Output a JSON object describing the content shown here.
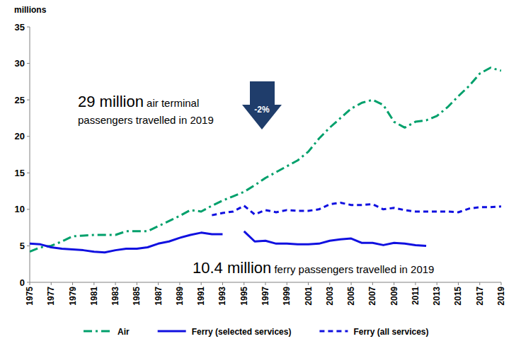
{
  "chart_data": {
    "type": "line",
    "y_label": "millions",
    "x": [
      1975,
      1976,
      1977,
      1978,
      1979,
      1980,
      1981,
      1982,
      1983,
      1984,
      1985,
      1986,
      1987,
      1988,
      1989,
      1990,
      1991,
      1992,
      1993,
      1994,
      1995,
      1996,
      1997,
      1998,
      1999,
      2000,
      2001,
      2002,
      2003,
      2004,
      2005,
      2006,
      2007,
      2008,
      2009,
      2010,
      2011,
      2012,
      2013,
      2014,
      2015,
      2016,
      2017,
      2018,
      2019
    ],
    "xlim": [
      1975,
      2019
    ],
    "xticks": [
      1975,
      1977,
      1979,
      1981,
      1983,
      1985,
      1987,
      1989,
      1991,
      1993,
      1995,
      1997,
      1999,
      2001,
      2003,
      2005,
      2007,
      2009,
      2011,
      2013,
      2015,
      2017,
      2019
    ],
    "ylim": [
      0,
      35
    ],
    "yticks": [
      0,
      5,
      10,
      15,
      20,
      25,
      30,
      35
    ],
    "grid": false,
    "legend": "bottom",
    "series": [
      {
        "name": "Air",
        "color": "#00a06b",
        "line_style": "dashdot",
        "values": [
          4.2,
          4.8,
          5.0,
          5.6,
          6.3,
          6.4,
          6.5,
          6.5,
          6.5,
          7.0,
          7.0,
          7.0,
          7.7,
          8.4,
          9.1,
          9.9,
          9.7,
          10.5,
          11.2,
          11.8,
          12.4,
          13.3,
          14.3,
          15.1,
          15.9,
          16.7,
          17.9,
          19.7,
          21.2,
          22.5,
          23.8,
          24.6,
          25.0,
          24.3,
          22.0,
          21.2,
          22.0,
          22.2,
          22.8,
          24.0,
          25.5,
          26.9,
          28.6,
          29.4,
          29.0
        ]
      },
      {
        "name": "Ferry (selected services)",
        "color": "#1010e0",
        "line_style": "solid",
        "values": [
          5.3,
          5.2,
          4.8,
          4.6,
          4.5,
          4.4,
          4.2,
          4.1,
          4.4,
          4.6,
          4.6,
          4.8,
          5.3,
          5.6,
          6.1,
          6.5,
          6.8,
          6.6,
          6.6,
          null,
          7.0,
          5.6,
          5.7,
          5.3,
          5.3,
          5.2,
          5.2,
          5.3,
          5.7,
          5.9,
          6.0,
          5.4,
          5.4,
          5.1,
          5.4,
          5.3,
          5.1,
          5.0,
          null,
          null,
          null,
          null,
          null,
          null,
          null
        ]
      },
      {
        "name": "Ferry (all services)",
        "color": "#1010e0",
        "line_style": "dashed",
        "values": [
          null,
          null,
          null,
          null,
          null,
          null,
          null,
          null,
          null,
          null,
          null,
          null,
          null,
          null,
          null,
          null,
          null,
          9.2,
          9.5,
          9.7,
          10.5,
          9.3,
          9.9,
          9.6,
          9.9,
          9.8,
          9.8,
          10.0,
          10.7,
          10.9,
          10.6,
          10.6,
          10.7,
          10.0,
          10.2,
          9.9,
          9.7,
          9.7,
          9.7,
          9.7,
          9.6,
          10.1,
          10.3,
          10.3,
          10.4
        ]
      }
    ],
    "annotations": [
      {
        "text": "29 million",
        "detail": "air terminal passengers travelled in 2019"
      },
      {
        "text": "10.4 million",
        "detail": "ferry passengers travelled in 2019"
      },
      {
        "text": "-2%"
      }
    ]
  }
}
